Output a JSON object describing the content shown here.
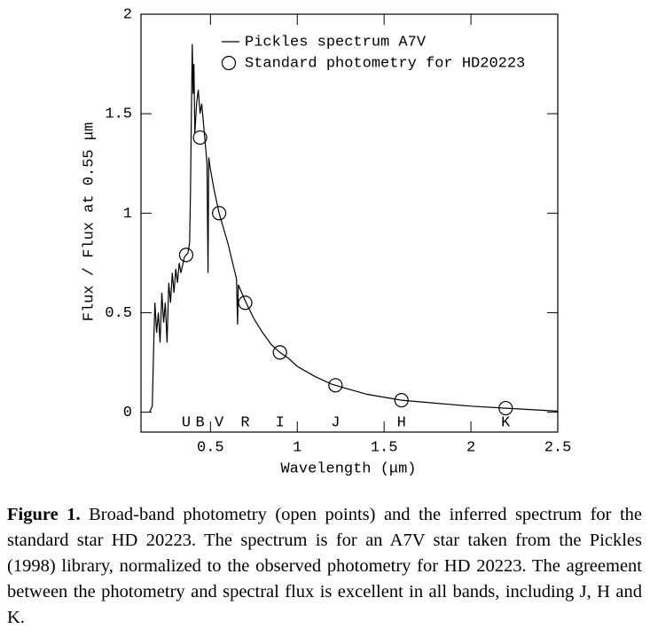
{
  "chart_data": {
    "type": "line",
    "xlabel": "Wavelength (μm)",
    "ylabel": "Flux / Flux at 0.55 μm",
    "xlim": [
      0.1,
      2.5
    ],
    "xticks": [
      0.5,
      1,
      1.5,
      2,
      2.5
    ],
    "ylim": [
      -0.1,
      2
    ],
    "yticks": [
      0,
      0.5,
      1,
      1.5,
      2
    ],
    "legend": "upper right",
    "series": [
      {
        "name": "Pickles spectrum A7V",
        "type": "line",
        "color": "#000000",
        "x": [
          0.15,
          0.165,
          0.175,
          0.18,
          0.19,
          0.2,
          0.21,
          0.22,
          0.23,
          0.24,
          0.25,
          0.26,
          0.27,
          0.28,
          0.29,
          0.3,
          0.31,
          0.32,
          0.33,
          0.35,
          0.37,
          0.38,
          0.385,
          0.39,
          0.395,
          0.4,
          0.405,
          0.41,
          0.42,
          0.43,
          0.44,
          0.45,
          0.46,
          0.47,
          0.48,
          0.486,
          0.49,
          0.5,
          0.52,
          0.55,
          0.6,
          0.65,
          0.656,
          0.66,
          0.7,
          0.75,
          0.8,
          0.85,
          0.9,
          0.95,
          1.0,
          1.1,
          1.2,
          1.4,
          1.6,
          1.8,
          2.0,
          2.2,
          2.5
        ],
        "values": [
          0.0,
          0.03,
          0.4,
          0.55,
          0.4,
          0.5,
          0.35,
          0.6,
          0.45,
          0.55,
          0.35,
          0.65,
          0.55,
          0.7,
          0.6,
          0.72,
          0.65,
          0.75,
          0.7,
          0.78,
          0.8,
          0.85,
          1.1,
          1.5,
          1.85,
          1.6,
          1.75,
          1.4,
          1.55,
          1.62,
          1.5,
          1.55,
          1.45,
          1.35,
          1.25,
          0.7,
          1.28,
          1.22,
          1.12,
          1.0,
          0.85,
          0.67,
          0.44,
          0.64,
          0.56,
          0.47,
          0.4,
          0.34,
          0.3,
          0.27,
          0.23,
          0.18,
          0.14,
          0.09,
          0.06,
          0.045,
          0.03,
          0.02,
          0.005
        ]
      },
      {
        "name": "Standard photometry for HD20223",
        "type": "scatter",
        "color": "#000000",
        "x": [
          0.36,
          0.44,
          0.55,
          0.7,
          0.9,
          1.22,
          1.6,
          2.2
        ],
        "values": [
          0.79,
          1.38,
          1.0,
          0.55,
          0.3,
          0.135,
          0.06,
          0.02
        ],
        "point_labels": [
          "U",
          "B",
          "V",
          "R",
          "I",
          "J",
          "H",
          "K"
        ]
      }
    ]
  },
  "caption": {
    "label": "Figure 1.",
    "text": "Broad-band photometry (open points) and the inferred spectrum for the standard star HD 20223. The spectrum is for an A7V star taken from the Pickles (1998) library, normalized to the observed photometry for HD 20223. The agreement between the photometry and spectral flux is excellent in all bands, including J, H and K."
  }
}
